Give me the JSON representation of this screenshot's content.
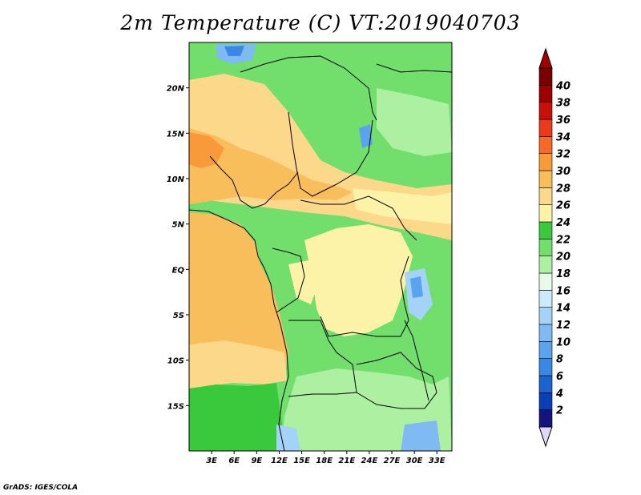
{
  "title": "2m Temperature (C) VT:2019040703",
  "credit": "GrADS: IGES/COLA",
  "map": {
    "lon_range": [
      0,
      35
    ],
    "lat_range": [
      -20,
      25
    ],
    "lat_ticks": [
      {
        "value": 20,
        "label": "20N"
      },
      {
        "value": 15,
        "label": "15N"
      },
      {
        "value": 10,
        "label": "10N"
      },
      {
        "value": 5,
        "label": "5N"
      },
      {
        "value": 0,
        "label": "EQ"
      },
      {
        "value": -5,
        "label": "5S"
      },
      {
        "value": -10,
        "label": "10S"
      },
      {
        "value": -15,
        "label": "15S"
      }
    ],
    "lon_ticks": [
      {
        "value": 3,
        "label": "3E"
      },
      {
        "value": 6,
        "label": "6E"
      },
      {
        "value": 9,
        "label": "9E"
      },
      {
        "value": 12,
        "label": "12E"
      },
      {
        "value": 15,
        "label": "15E"
      },
      {
        "value": 18,
        "label": "18E"
      },
      {
        "value": 21,
        "label": "21E"
      },
      {
        "value": 24,
        "label": "24E"
      },
      {
        "value": 27,
        "label": "27E"
      },
      {
        "value": 30,
        "label": "30E"
      },
      {
        "value": 33,
        "label": "33E"
      }
    ]
  },
  "colorbar": {
    "labels": [
      "2",
      "4",
      "6",
      "8",
      "10",
      "12",
      "14",
      "16",
      "18",
      "20",
      "22",
      "24",
      "26",
      "28",
      "30",
      "32",
      "34",
      "36",
      "38",
      "40"
    ],
    "colors": [
      "#15137e",
      "#0b3fb7",
      "#1c63d2",
      "#3a88e3",
      "#5aa3ed",
      "#7fbbf2",
      "#a5d2f8",
      "#cdeafc",
      "#e8fbe8",
      "#aef0a1",
      "#72de6c",
      "#3ac83c",
      "#fcf3a8",
      "#fcd88b",
      "#f9be5c",
      "#f99a3a",
      "#f56a25",
      "#e93a1a",
      "#c8100b",
      "#9e0000",
      "#7a0000"
    ],
    "under_color": "#e0d8f8",
    "over_color": "#a00000"
  }
}
